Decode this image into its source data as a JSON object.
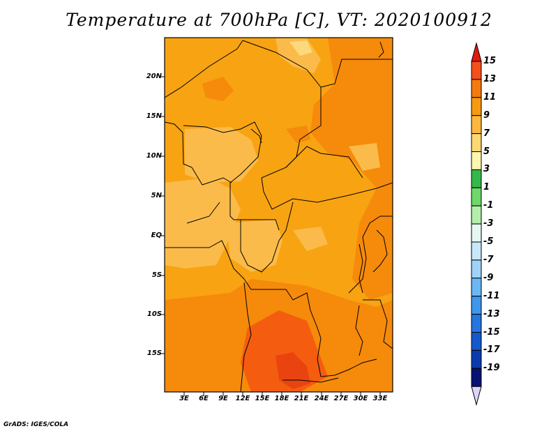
{
  "title": "Temperature at 700hPa [C], VT: 2020100912",
  "credit": "GrADS: IGES/COLA",
  "map": {
    "lat_labels": [
      "20N",
      "15N",
      "10N",
      "5N",
      "EQ",
      "5S",
      "10S",
      "15S"
    ],
    "lon_labels": [
      "3E",
      "6E",
      "9E",
      "12E",
      "15E",
      "18E",
      "21E",
      "24E",
      "27E",
      "30E",
      "33E"
    ],
    "fill_colors": {
      "t7": "#fbbb4a",
      "t9": "#f8a312",
      "t11": "#f68a0b",
      "t13": "#f45d0f",
      "t5": "#fcd97a"
    }
  },
  "colorbar": {
    "labels": [
      "15",
      "13",
      "11",
      "9",
      "7",
      "5",
      "3",
      "1",
      "-1",
      "-3",
      "-5",
      "-7",
      "-9",
      "-11",
      "-13",
      "-15",
      "-17",
      "-19"
    ],
    "colors": [
      "#e11a10",
      "#f4501a",
      "#f47a0e",
      "#f89a10",
      "#fbb83c",
      "#fcd873",
      "#fff6b0",
      "#35b84a",
      "#6ed86a",
      "#b2efaa",
      "#e4f8f0",
      "#c8e8fa",
      "#9fd2f8",
      "#6ab8f3",
      "#3f97eb",
      "#2676df",
      "#1557cc",
      "#0c3aad",
      "#061274",
      "#dad8f8"
    ]
  }
}
